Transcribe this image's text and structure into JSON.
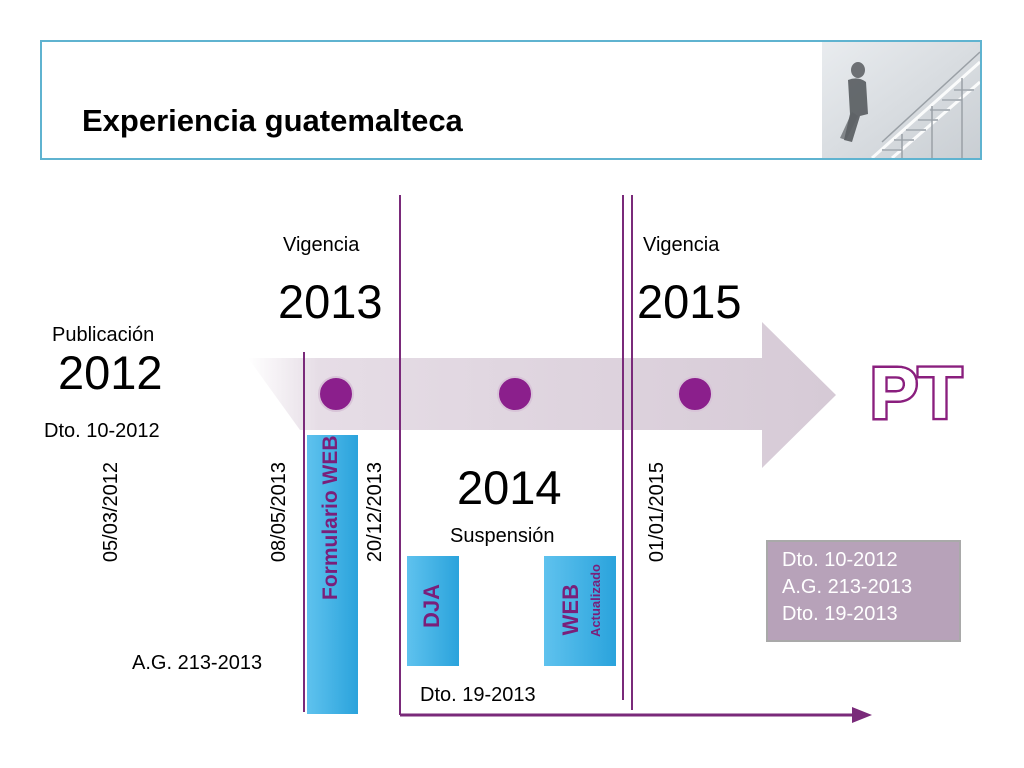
{
  "header": {
    "title": "Experiencia guatemalteca",
    "photo_icon": "person-climbing-stairs-photo"
  },
  "timeline": {
    "labels": {
      "publicacion": "Publicación",
      "year_2012": "2012",
      "dto_2012": "Dto. 10-2012",
      "vigencia_2013": "Vigencia",
      "year_2013": "2013",
      "vigencia_2015": "Vigencia",
      "year_2015": "2015",
      "year_2014": "2014",
      "suspension": "Suspensión",
      "ag_2013": "A.G. 213-2013",
      "dto_19_2013": "Dto. 19-2013"
    },
    "dates": {
      "d1": "05/03/2012",
      "d2": "08/05/2013",
      "d3": "20/12/2013",
      "d4": "01/01/2015"
    },
    "tabs": {
      "formulario_web": "Formulario WEB",
      "dja": "DJA",
      "web": "WEB",
      "actualizado": "Actualizado"
    }
  },
  "logo": {
    "text": "PT"
  },
  "summary_box": {
    "lines": [
      "Dto. 10-2012",
      "A.G. 213-2013",
      "Dto. 19-2013"
    ]
  },
  "colors": {
    "arrow_band": "#ddd3dd",
    "milestone_dot": "#8b1f8c",
    "purple_line": "#7a2a7a",
    "logo": "#8a1f7e",
    "tab_blue": "#3fb3e6",
    "header_border": "#5fb3d0",
    "summary_box": "#b7a2b9"
  }
}
